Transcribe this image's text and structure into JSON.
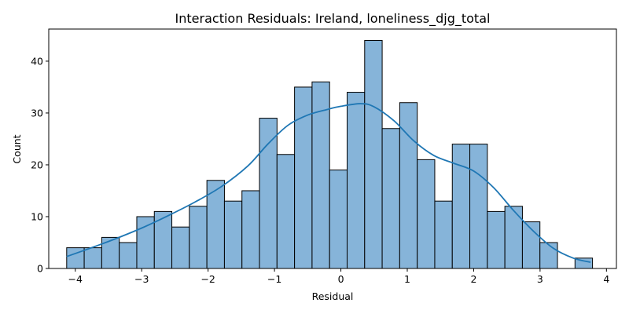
{
  "chart_data": {
    "type": "bar",
    "title": "Interaction Residuals: Ireland, loneliness_djg_total",
    "xlabel": "Residual",
    "ylabel": "Count",
    "xlim": [
      -4.4,
      4.15
    ],
    "ylim": [
      0,
      46.2
    ],
    "xticks": [
      -4,
      -3,
      -2,
      -1,
      0,
      1,
      2,
      3,
      4
    ],
    "yticks": [
      0,
      10,
      20,
      30,
      40
    ],
    "bins": {
      "start": -4.13,
      "width": 0.264,
      "counts": [
        4,
        4,
        6,
        5,
        10,
        11,
        8,
        12,
        17,
        13,
        15,
        29,
        22,
        35,
        36,
        19,
        34,
        44,
        27,
        32,
        21,
        13,
        24,
        24,
        11,
        12,
        9,
        5,
        0,
        2
      ]
    },
    "kde": {
      "x": [
        -4.13,
        -3.8,
        -3.4,
        -3.0,
        -2.6,
        -2.2,
        -1.8,
        -1.4,
        -1.1,
        -0.8,
        -0.5,
        -0.2,
        0.0,
        0.3,
        0.5,
        0.8,
        1.1,
        1.4,
        1.7,
        2.0,
        2.3,
        2.6,
        2.9,
        3.2,
        3.5,
        3.76
      ],
      "y": [
        2.3,
        3.8,
        5.7,
        7.8,
        10.2,
        12.8,
        15.8,
        19.8,
        24.0,
        27.6,
        29.6,
        30.7,
        31.3,
        31.8,
        31.2,
        28.5,
        24.6,
        21.8,
        20.3,
        18.8,
        15.6,
        11.2,
        7.2,
        3.9,
        2.0,
        1.2
      ]
    },
    "grid": false,
    "legend": "none"
  }
}
